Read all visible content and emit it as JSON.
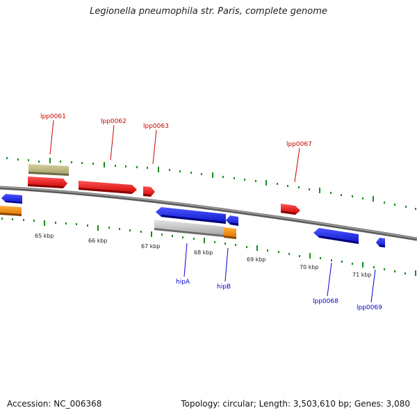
{
  "title": "Legionella pneumophila str. Paris, complete genome",
  "footer": {
    "accession": "Accession: NC_006368",
    "summary": "Topology: circular; Length: 3,503,610 bp; Genes: 3,080"
  },
  "colors": {
    "forward_gene": "#ee1111",
    "reverse_gene": "#1122ee",
    "orange_gene": "#ff8c00",
    "khaki_gene": "#c2bd86",
    "grey_gene": "#c8c8c8",
    "backbone": "#7a7a7a",
    "tick": "#1a8a1a",
    "forward_label": "#cc0000",
    "reverse_label": "#0000cc"
  },
  "scale_labels": [
    "65 kbp",
    "66 kbp",
    "67 kbp",
    "68 kbp",
    "69 kbp",
    "70 kbp",
    "71 kbp"
  ],
  "forward_labels": [
    "lpp0061",
    "lpp0062",
    "lpp0063",
    "lpp0067"
  ],
  "reverse_labels": [
    "hipA",
    "hipB",
    "lpp0068",
    "lpp0069"
  ]
}
